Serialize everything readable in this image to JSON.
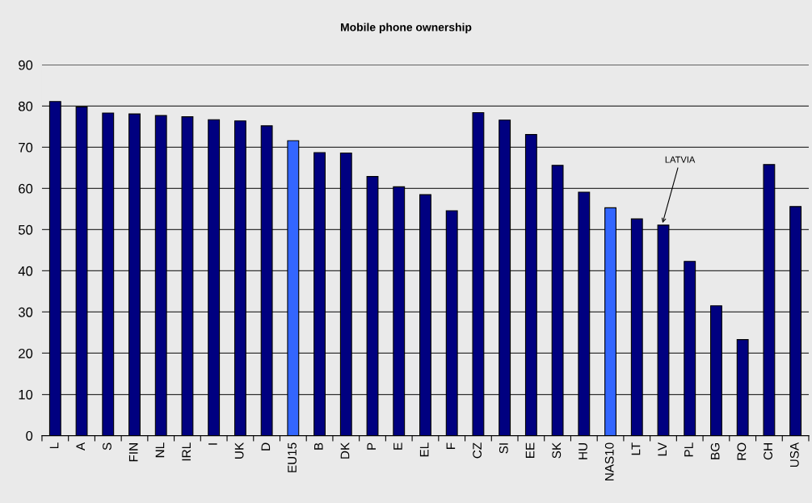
{
  "chart_data": {
    "type": "bar",
    "title": "Mobile phone ownership",
    "categories": [
      "L",
      "A",
      "S",
      "FIN",
      "NL",
      "IRL",
      "I",
      "UK",
      "D",
      "EU15",
      "B",
      "DK",
      "P",
      "E",
      "EL",
      "F",
      "CZ",
      "SI",
      "EE",
      "SK",
      "HU",
      "NAS10",
      "LT",
      "LV",
      "PL",
      "BG",
      "RO",
      "CH",
      "USA"
    ],
    "values": [
      81.1,
      79.8,
      78.3,
      78.1,
      77.7,
      77.4,
      76.7,
      76.4,
      75.2,
      71.6,
      68.7,
      68.6,
      62.9,
      60.4,
      58.5,
      54.6,
      78.4,
      76.6,
      73.1,
      65.6,
      59.1,
      55.3,
      52.6,
      51.1,
      42.3,
      31.5,
      23.3,
      65.8,
      55.6
    ],
    "colors": [
      "#000080",
      "#000080",
      "#000080",
      "#000080",
      "#000080",
      "#000080",
      "#000080",
      "#000080",
      "#000080",
      "#3366ff",
      "#000080",
      "#000080",
      "#000080",
      "#000080",
      "#000080",
      "#000080",
      "#000080",
      "#000080",
      "#000080",
      "#000080",
      "#000080",
      "#3366ff",
      "#000080",
      "#000080",
      "#000080",
      "#000080",
      "#000080",
      "#000080",
      "#000080"
    ],
    "ylim": [
      0,
      90
    ],
    "yticks": [
      0,
      10,
      20,
      30,
      40,
      50,
      60,
      70,
      80,
      90
    ],
    "grid": "y",
    "legend": false,
    "annotations": [
      {
        "text": "LATVIA",
        "x": "LV",
        "y": 51.1
      }
    ]
  }
}
